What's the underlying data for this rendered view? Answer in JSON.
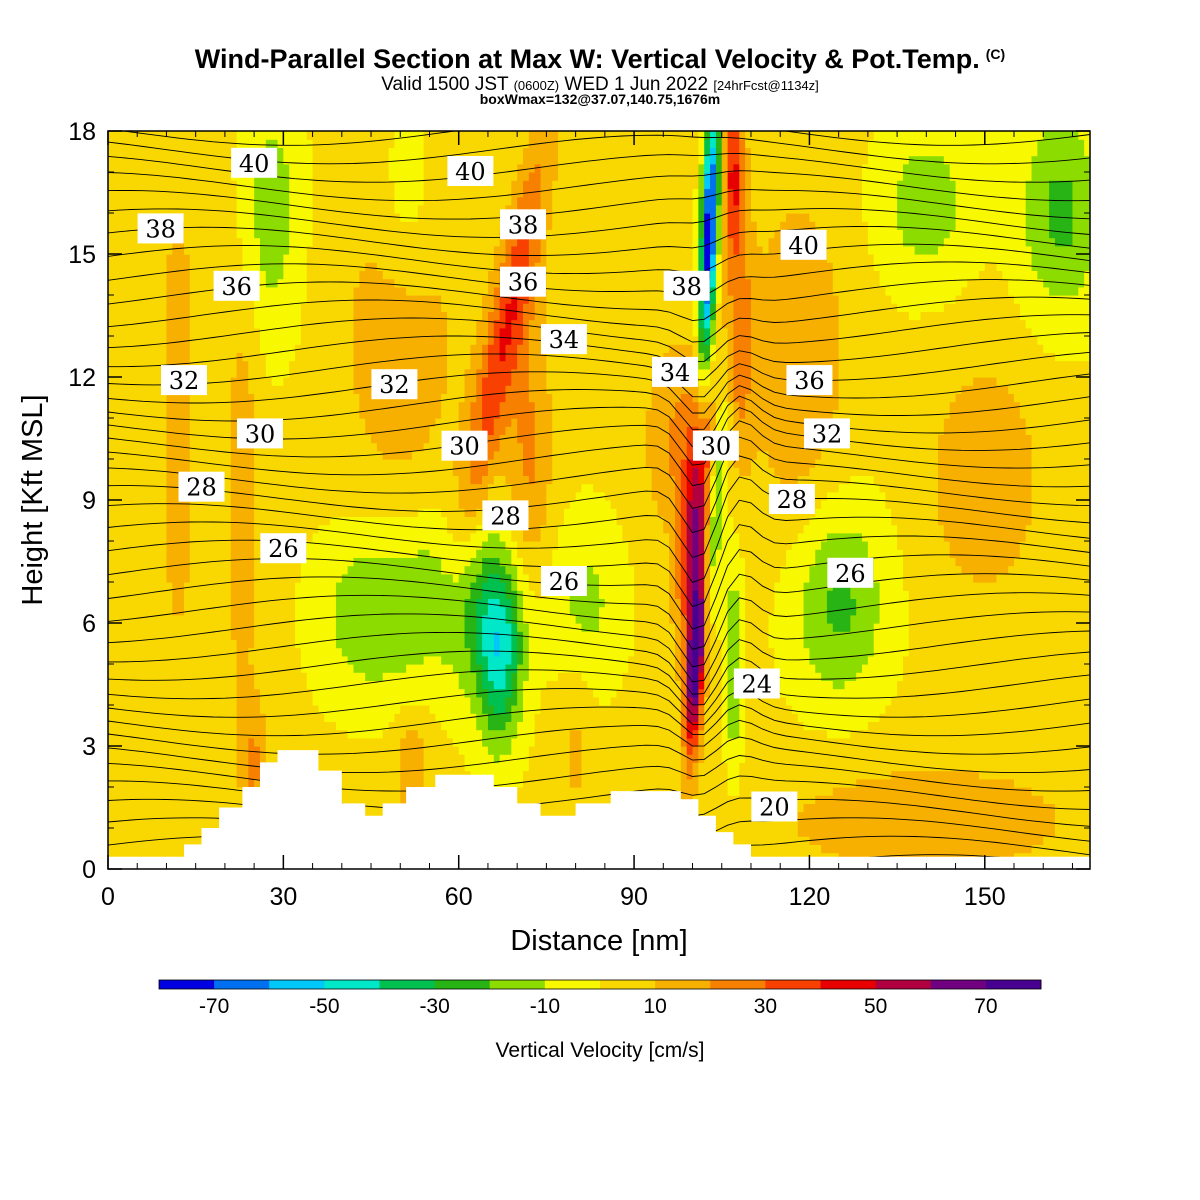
{
  "title": {
    "main": "Wind-Parallel Section at Max W: Vertical Velocity & Pot.Temp.",
    "copyright": "(C)",
    "valid_prefix": "Valid 1500 JST",
    "valid_utc": "(0600Z)",
    "valid_date": "WED 1 Jun 2022",
    "forecast": "[24hrFcst@1134z]",
    "box_info": "boxWmax=132@37.07,140.75,1676m"
  },
  "chart_data": {
    "type": "heatmap",
    "xlabel": "Distance [nm]",
    "ylabel": "Height [Kft MSL]",
    "xlim": [
      0,
      168
    ],
    "ylim": [
      0,
      18
    ],
    "x_ticks": [
      0,
      30,
      60,
      90,
      120,
      150
    ],
    "y_ticks": [
      0,
      3,
      6,
      9,
      12,
      15,
      18
    ],
    "colorbar": {
      "title": "Vertical Velocity [cm/s]",
      "levels": [
        -80,
        -70,
        -60,
        -50,
        -40,
        -30,
        -20,
        -10,
        0,
        10,
        20,
        30,
        40,
        50,
        60,
        70,
        80
      ],
      "tick_labels": [
        "-70",
        "-50",
        "-30",
        "-10",
        "10",
        "30",
        "50",
        "70"
      ],
      "tick_values": [
        -70,
        -50,
        -30,
        -10,
        10,
        30,
        50,
        70
      ],
      "colors": [
        "#0000e0",
        "#0070f0",
        "#00c8f8",
        "#00e8c8",
        "#00c050",
        "#28b414",
        "#8cdc00",
        "#f8f800",
        "#f8d800",
        "#f8b000",
        "#f88000",
        "#f84000",
        "#e80000",
        "#b00040",
        "#700080",
        "#480090"
      ]
    },
    "field_w_sample": [
      {
        "x": 100,
        "z": 5.0,
        "w": 75
      },
      {
        "x": 103,
        "z": 15.0,
        "w": -65
      },
      {
        "x": 66,
        "z": 5.0,
        "w": -35
      },
      {
        "x": 72,
        "z": 15.0,
        "w": 25
      },
      {
        "x": 36,
        "z": 5.0,
        "w": -15
      },
      {
        "x": 160,
        "z": 16.0,
        "w": -15
      },
      {
        "x": 125,
        "z": 6.0,
        "w": -15
      }
    ],
    "theta_contours": [
      {
        "label": "40",
        "x": 25,
        "z": 17.2
      },
      {
        "label": "40",
        "x": 62,
        "z": 17.0
      },
      {
        "label": "38",
        "x": 9,
        "z": 15.6
      },
      {
        "label": "38",
        "x": 71,
        "z": 15.7
      },
      {
        "label": "40",
        "x": 119,
        "z": 15.2
      },
      {
        "label": "36",
        "x": 22,
        "z": 14.2
      },
      {
        "label": "36",
        "x": 71,
        "z": 14.3
      },
      {
        "label": "38",
        "x": 99,
        "z": 14.2
      },
      {
        "label": "34",
        "x": 78,
        "z": 12.9
      },
      {
        "label": "34",
        "x": 97,
        "z": 12.1
      },
      {
        "label": "36",
        "x": 120,
        "z": 11.9
      },
      {
        "label": "32",
        "x": 13,
        "z": 11.9
      },
      {
        "label": "32",
        "x": 49,
        "z": 11.8
      },
      {
        "label": "30",
        "x": 26,
        "z": 10.6
      },
      {
        "label": "30",
        "x": 61,
        "z": 10.3
      },
      {
        "label": "30",
        "x": 104,
        "z": 10.3
      },
      {
        "label": "32",
        "x": 123,
        "z": 10.6
      },
      {
        "label": "28",
        "x": 16,
        "z": 9.3
      },
      {
        "label": "28",
        "x": 68,
        "z": 8.6
      },
      {
        "label": "28",
        "x": 117,
        "z": 9.0
      },
      {
        "label": "26",
        "x": 30,
        "z": 7.8
      },
      {
        "label": "26",
        "x": 78,
        "z": 7.0
      },
      {
        "label": "26",
        "x": 127,
        "z": 7.2
      },
      {
        "label": "24",
        "x": 111,
        "z": 4.5
      },
      {
        "label": "20",
        "x": 114,
        "z": 1.5
      }
    ],
    "terrain": [
      [
        0,
        0.3
      ],
      [
        10,
        0.3
      ],
      [
        13,
        0.6
      ],
      [
        16,
        1.0
      ],
      [
        19,
        1.5
      ],
      [
        23,
        2.0
      ],
      [
        26,
        2.6
      ],
      [
        29,
        2.9
      ],
      [
        33,
        2.9
      ],
      [
        36,
        2.4
      ],
      [
        40,
        1.6
      ],
      [
        44,
        1.3
      ],
      [
        47,
        1.6
      ],
      [
        51,
        2.0
      ],
      [
        56,
        2.3
      ],
      [
        61,
        2.3
      ],
      [
        66,
        2.0
      ],
      [
        70,
        1.6
      ],
      [
        74,
        1.3
      ],
      [
        80,
        1.6
      ],
      [
        86,
        1.9
      ],
      [
        93,
        1.9
      ],
      [
        98,
        1.7
      ],
      [
        101,
        1.3
      ],
      [
        104,
        0.9
      ],
      [
        107,
        0.6
      ],
      [
        110,
        0.3
      ],
      [
        168,
        0.3
      ]
    ]
  }
}
